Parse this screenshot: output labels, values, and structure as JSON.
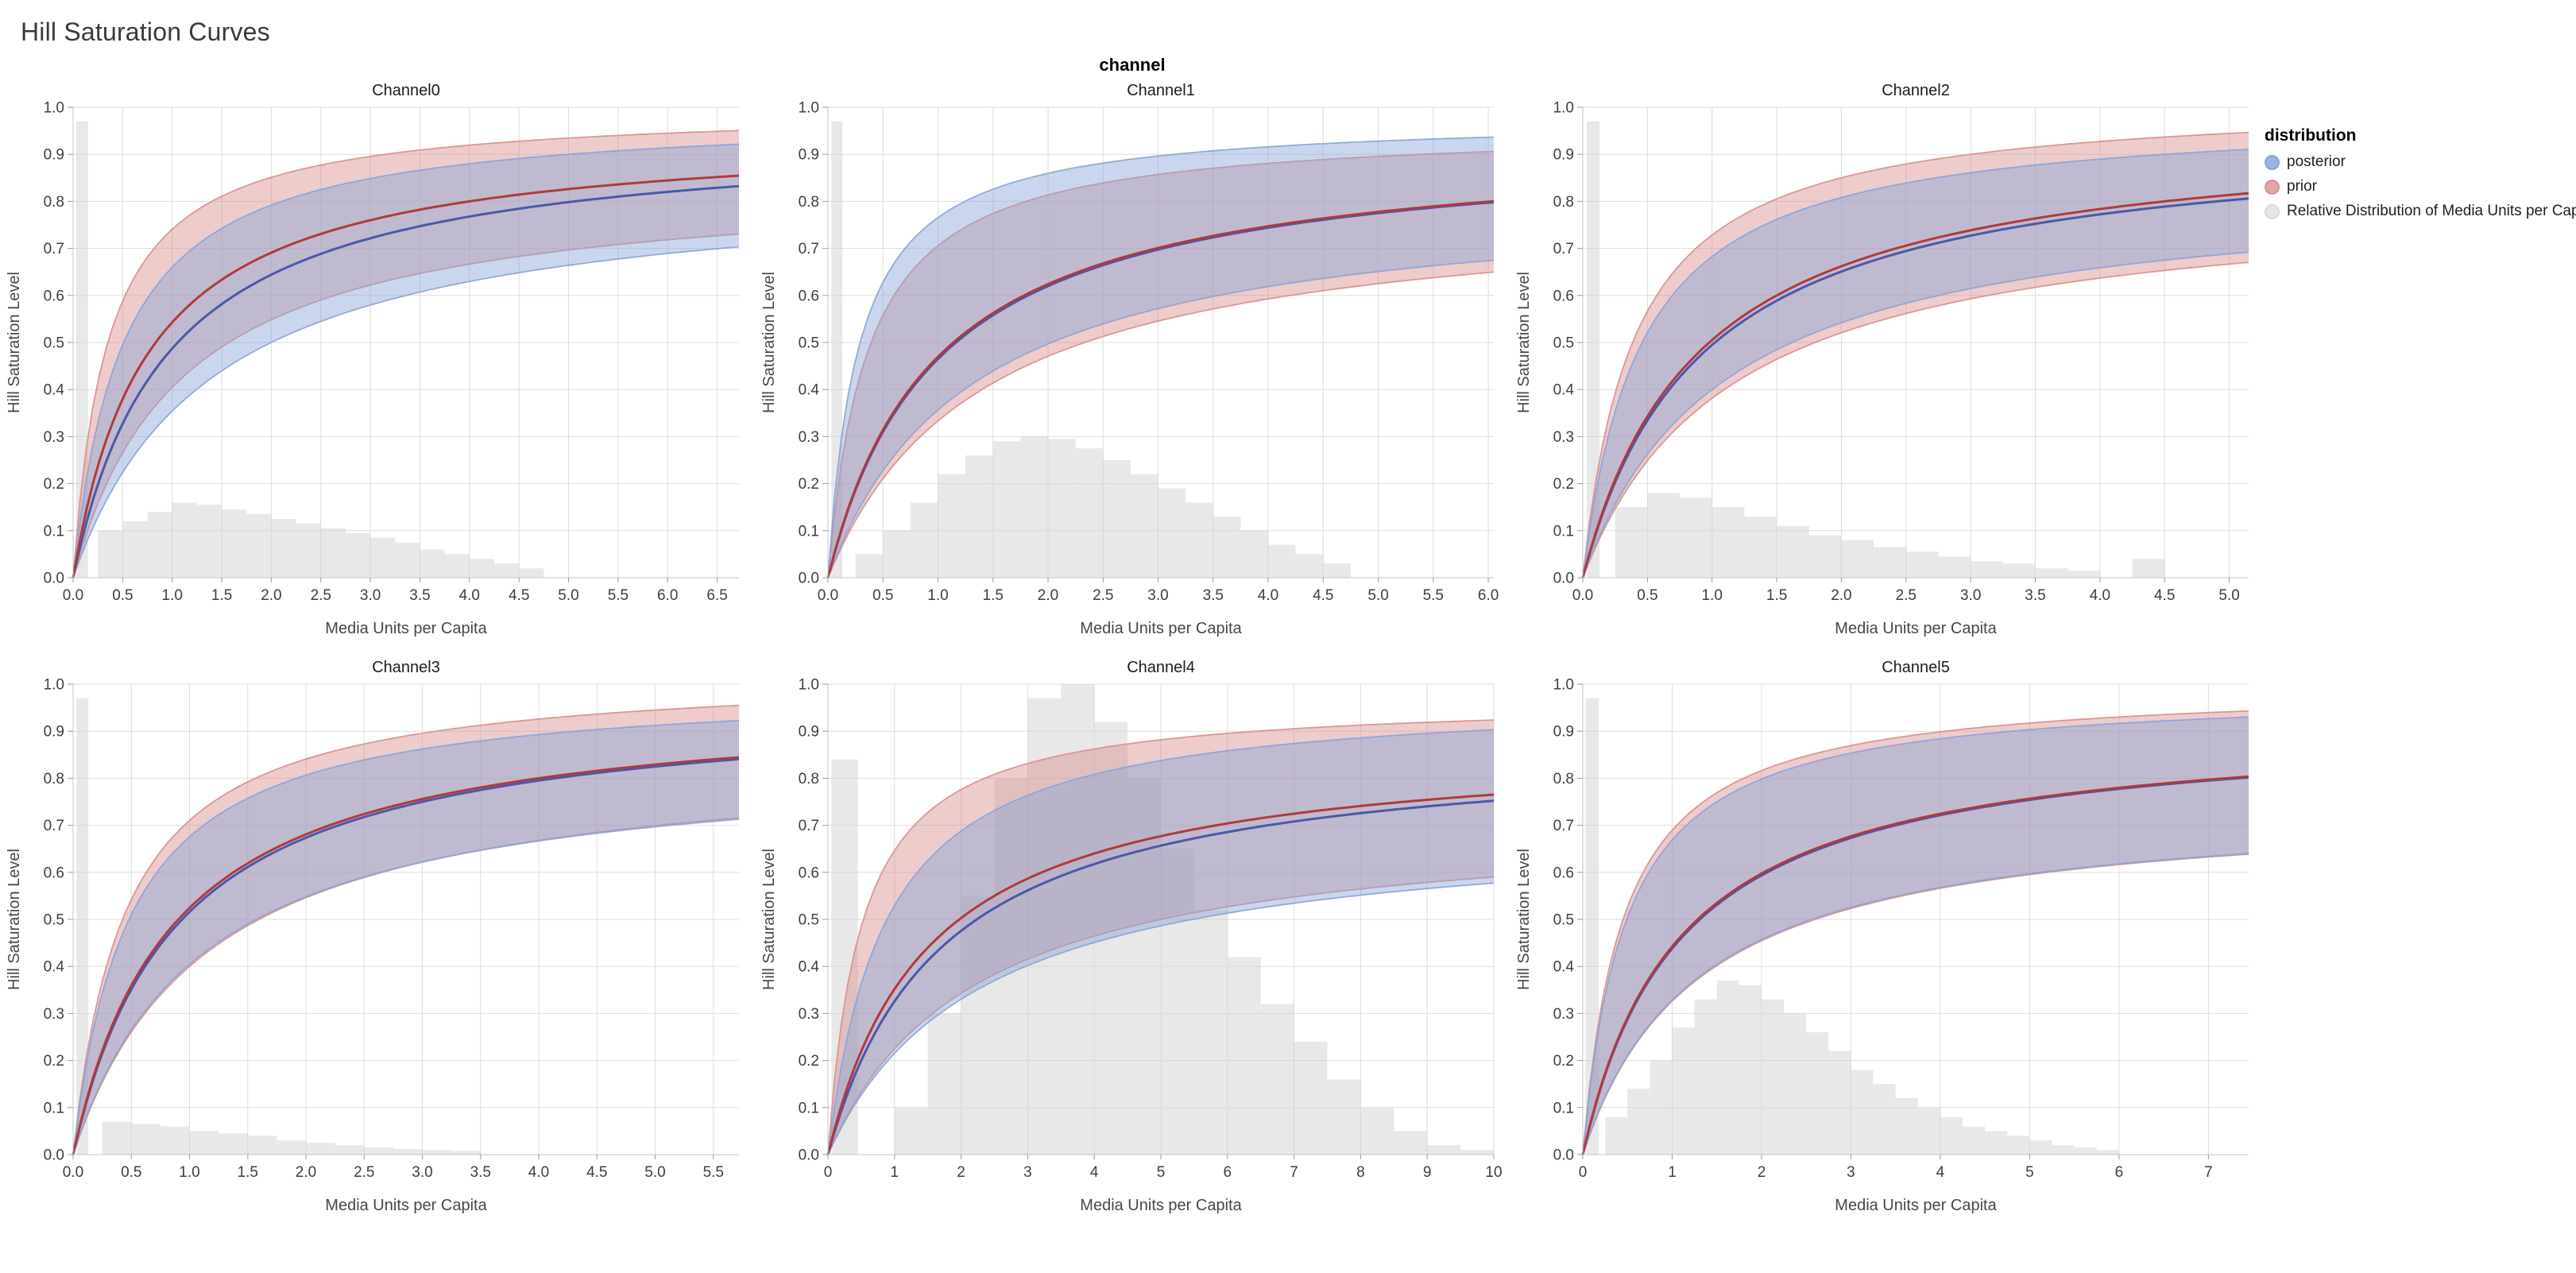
{
  "page": {
    "title": "Hill Saturation Curves"
  },
  "facet": {
    "header": "channel"
  },
  "legend": {
    "title": "distribution",
    "items": [
      {
        "label": "posterior",
        "color": "#84a1d8",
        "border": "#6d8ec9"
      },
      {
        "label": "prior",
        "color": "#dc908e",
        "border": "#c97a78"
      },
      {
        "label": "Relative Distribution of Media Units per Capita",
        "color": "#e0e0e0",
        "border": "#cfcfcf"
      }
    ]
  },
  "style": {
    "posterior_line": "#4a58a8",
    "posterior_band": "#89a3d6",
    "prior_line": "#b03a3c",
    "prior_band": "#d88e8c",
    "hist_color": "#d2d2d2",
    "grid_color": "#dddddd",
    "axis_color": "#c4c4c4",
    "tick_color": "#9b9b9b",
    "label_color": "#3e3e3e",
    "axis_title_color": "#474747",
    "chart_title_color": "#1d1d1d"
  },
  "axes": {
    "xlabel": "Media Units per Capita",
    "ylabel": "Hill Saturation Level",
    "ylim": [
      0,
      1
    ],
    "ytick_values": [
      0,
      0.1,
      0.2,
      0.3,
      0.4,
      0.5,
      0.6,
      0.7,
      0.8,
      0.9,
      1
    ],
    "ytick_labels": [
      "0.0",
      "0.1",
      "0.2",
      "0.3",
      "0.4",
      "0.5",
      "0.6",
      "0.7",
      "0.8",
      "0.9",
      "1.0"
    ]
  },
  "chart_data": [
    {
      "type": "line",
      "title": "Channel0",
      "xlim": [
        0,
        6.72
      ],
      "xtick_values": [
        0,
        0.5,
        1,
        1.5,
        2,
        2.5,
        3,
        3.5,
        4,
        4.5,
        5,
        5.5,
        6,
        6.5
      ],
      "xtick_labels": [
        "0.0",
        "0.5",
        "1.0",
        "1.5",
        "2.0",
        "2.5",
        "3.0",
        "3.5",
        "4.0",
        "4.5",
        "5.0",
        "5.5",
        "6.0",
        "6.5"
      ],
      "series": {
        "posterior": {
          "mean": {
            "ymax": 0.95,
            "k": 0.95
          },
          "upper": {
            "ymax": 0.99,
            "k": 0.5
          },
          "lower": {
            "ymax": 0.85,
            "k": 1.4
          }
        },
        "prior": {
          "mean": {
            "ymax": 0.95,
            "k": 0.75
          },
          "upper": {
            "ymax": 1.0,
            "k": 0.35
          },
          "lower": {
            "ymax": 0.85,
            "k": 1.1
          }
        }
      },
      "histogram": {
        "spike": {
          "x0": 0.03,
          "width": 0.12,
          "height": 0.97
        },
        "start": 0.25,
        "bin_width": 0.25,
        "heights": [
          0.1,
          0.12,
          0.14,
          0.16,
          0.155,
          0.145,
          0.135,
          0.125,
          0.115,
          0.105,
          0.095,
          0.085,
          0.075,
          0.06,
          0.05,
          0.04,
          0.03,
          0.02
        ]
      }
    },
    {
      "type": "line",
      "title": "Channel1",
      "xlim": [
        0,
        6.05
      ],
      "xtick_values": [
        0,
        0.5,
        1,
        1.5,
        2,
        2.5,
        3,
        3.5,
        4,
        4.5,
        5,
        5.5,
        6
      ],
      "xtick_labels": [
        "0.0",
        "0.5",
        "1.0",
        "1.5",
        "2.0",
        "2.5",
        "3.0",
        "3.5",
        "4.0",
        "4.5",
        "5.0",
        "5.5",
        "6.0"
      ],
      "series": {
        "posterior": {
          "mean": {
            "ymax": 0.93,
            "k": 1.0
          },
          "upper": {
            "ymax": 0.98,
            "k": 0.28
          },
          "lower": {
            "ymax": 0.82,
            "k": 1.3
          }
        },
        "prior": {
          "mean": {
            "ymax": 0.93,
            "k": 0.98
          },
          "upper": {
            "ymax": 0.96,
            "k": 0.36
          },
          "lower": {
            "ymax": 0.8,
            "k": 1.4
          }
        }
      },
      "histogram": {
        "spike": {
          "x0": 0.03,
          "width": 0.1,
          "height": 0.97
        },
        "start": 0.25,
        "bin_width": 0.25,
        "heights": [
          0.05,
          0.1,
          0.16,
          0.22,
          0.26,
          0.29,
          0.3,
          0.295,
          0.275,
          0.25,
          0.22,
          0.19,
          0.16,
          0.13,
          0.1,
          0.07,
          0.05,
          0.03
        ]
      }
    },
    {
      "type": "line",
      "title": "Channel2",
      "xlim": [
        0,
        5.15
      ],
      "xtick_values": [
        0,
        0.5,
        1,
        1.5,
        2,
        2.5,
        3,
        3.5,
        4,
        4.5,
        5
      ],
      "xtick_labels": [
        "0.0",
        "0.5",
        "1.0",
        "1.5",
        "2.0",
        "2.5",
        "3.0",
        "3.5",
        "4.0",
        "4.5",
        "5.0"
      ],
      "series": {
        "posterior": {
          "mean": {
            "ymax": 0.95,
            "k": 0.92
          },
          "upper": {
            "ymax": 0.99,
            "k": 0.45
          },
          "lower": {
            "ymax": 0.84,
            "k": 1.1
          }
        },
        "prior": {
          "mean": {
            "ymax": 0.96,
            "k": 0.9
          },
          "upper": {
            "ymax": 1.02,
            "k": 0.4
          },
          "lower": {
            "ymax": 0.82,
            "k": 1.15
          }
        }
      },
      "histogram": {
        "spike": {
          "x0": 0.03,
          "width": 0.1,
          "height": 0.97
        },
        "start": 0.25,
        "bin_width": 0.25,
        "heights": [
          0.15,
          0.18,
          0.17,
          0.15,
          0.13,
          0.11,
          0.09,
          0.08,
          0.065,
          0.055,
          0.045,
          0.035,
          0.03,
          0.02,
          0.015,
          0,
          0.04
        ]
      }
    },
    {
      "type": "line",
      "title": "Channel3",
      "xlim": [
        0,
        5.72
      ],
      "xtick_values": [
        0,
        0.5,
        1,
        1.5,
        2,
        2.5,
        3,
        3.5,
        4,
        4.5,
        5,
        5.5
      ],
      "xtick_labels": [
        "0.0",
        "0.5",
        "1.0",
        "1.5",
        "2.0",
        "2.5",
        "3.0",
        "3.5",
        "4.0",
        "4.5",
        "5.0",
        "5.5"
      ],
      "series": {
        "posterior": {
          "mean": {
            "ymax": 0.97,
            "k": 0.88
          },
          "upper": {
            "ymax": 1.0,
            "k": 0.48
          },
          "lower": {
            "ymax": 0.85,
            "k": 1.1
          }
        },
        "prior": {
          "mean": {
            "ymax": 0.97,
            "k": 0.85
          },
          "upper": {
            "ymax": 1.03,
            "k": 0.45
          },
          "lower": {
            "ymax": 0.86,
            "k": 1.15
          }
        }
      },
      "histogram": {
        "spike": {
          "x0": 0.03,
          "width": 0.1,
          "height": 0.97
        },
        "start": 0.25,
        "bin_width": 0.25,
        "heights": [
          0.07,
          0.065,
          0.06,
          0.05,
          0.045,
          0.04,
          0.03,
          0.025,
          0.02,
          0.015,
          0.012,
          0.01,
          0.008
        ]
      }
    },
    {
      "type": "line",
      "title": "Channel4",
      "xlim": [
        0,
        10
      ],
      "xtick_values": [
        0,
        1,
        2,
        3,
        4,
        5,
        6,
        7,
        8,
        9,
        10
      ],
      "xtick_labels": [
        "0",
        "1",
        "2",
        "3",
        "4",
        "5",
        "6",
        "7",
        "8",
        "9",
        "10"
      ],
      "series": {
        "posterior": {
          "mean": {
            "ymax": 0.88,
            "k": 1.7
          },
          "upper": {
            "ymax": 0.98,
            "k": 0.85
          },
          "lower": {
            "ymax": 0.71,
            "k": 2.3
          }
        },
        "prior": {
          "mean": {
            "ymax": 0.88,
            "k": 1.5
          },
          "upper": {
            "ymax": 0.97,
            "k": 0.5
          },
          "lower": {
            "ymax": 0.72,
            "k": 2.2
          }
        }
      },
      "histogram": {
        "spike": {
          "x0": 0.05,
          "width": 0.4,
          "height": 0.84
        },
        "start": 1.0,
        "bin_width": 0.5,
        "heights": [
          0.1,
          0.3,
          0.55,
          0.8,
          0.97,
          1.0,
          0.92,
          0.8,
          0.65,
          0.52,
          0.42,
          0.32,
          0.24,
          0.16,
          0.1,
          0.05,
          0.02,
          0.01
        ]
      }
    },
    {
      "type": "line",
      "title": "Channel5",
      "xlim": [
        0,
        7.45
      ],
      "xtick_values": [
        0,
        1,
        2,
        3,
        4,
        5,
        6,
        7
      ],
      "xtick_labels": [
        "0",
        "1",
        "2",
        "3",
        "4",
        "5",
        "6",
        "7"
      ],
      "series": {
        "posterior": {
          "mean": {
            "ymax": 0.92,
            "k": 1.1
          },
          "upper": {
            "ymax": 0.99,
            "k": 0.48
          },
          "lower": {
            "ymax": 0.75,
            "k": 1.28
          }
        },
        "prior": {
          "mean": {
            "ymax": 0.92,
            "k": 1.08
          },
          "upper": {
            "ymax": 1.0,
            "k": 0.45
          },
          "lower": {
            "ymax": 0.75,
            "k": 1.3
          }
        }
      },
      "histogram": {
        "spike": {
          "x0": 0.03,
          "width": 0.15,
          "height": 0.97
        },
        "start": 0.25,
        "bin_width": 0.25,
        "heights": [
          0.08,
          0.14,
          0.2,
          0.27,
          0.33,
          0.37,
          0.36,
          0.33,
          0.3,
          0.26,
          0.22,
          0.18,
          0.15,
          0.12,
          0.1,
          0.08,
          0.06,
          0.05,
          0.04,
          0.03,
          0.02,
          0.015,
          0.01
        ]
      }
    }
  ]
}
